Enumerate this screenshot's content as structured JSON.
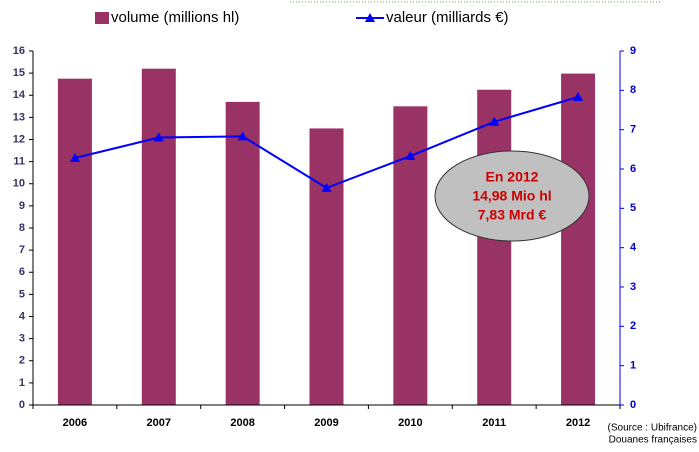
{
  "chart_data": {
    "type": "bar",
    "categories": [
      "2006",
      "2007",
      "2008",
      "2009",
      "2010",
      "2011",
      "2012"
    ],
    "series": [
      {
        "name": "volume (millions hl)",
        "color": "#993366",
        "type": "bar",
        "values": [
          14.75,
          15.2,
          13.7,
          12.5,
          13.5,
          14.25,
          14.98
        ]
      },
      {
        "name": "valeur (milliards €)",
        "color": "#0000ff",
        "type": "line",
        "axis": "y2",
        "values": [
          6.28,
          6.8,
          6.83,
          5.52,
          6.33,
          7.2,
          7.83
        ]
      }
    ],
    "ylim": [
      0,
      16
    ],
    "yticks": [
      0,
      1,
      2,
      3,
      4,
      5,
      6,
      7,
      8,
      9,
      10,
      11,
      12,
      13,
      14,
      15,
      16
    ],
    "y2lim": [
      0,
      9
    ],
    "y2ticks": [
      0,
      1,
      2,
      3,
      4,
      5,
      6,
      7,
      8,
      9
    ],
    "annotation": [
      "En 2012",
      "14,98 Mio hl",
      "7,83 Mrd €"
    ],
    "source": [
      "(Source : Ubifrance)",
      "Douanes françaises"
    ]
  }
}
